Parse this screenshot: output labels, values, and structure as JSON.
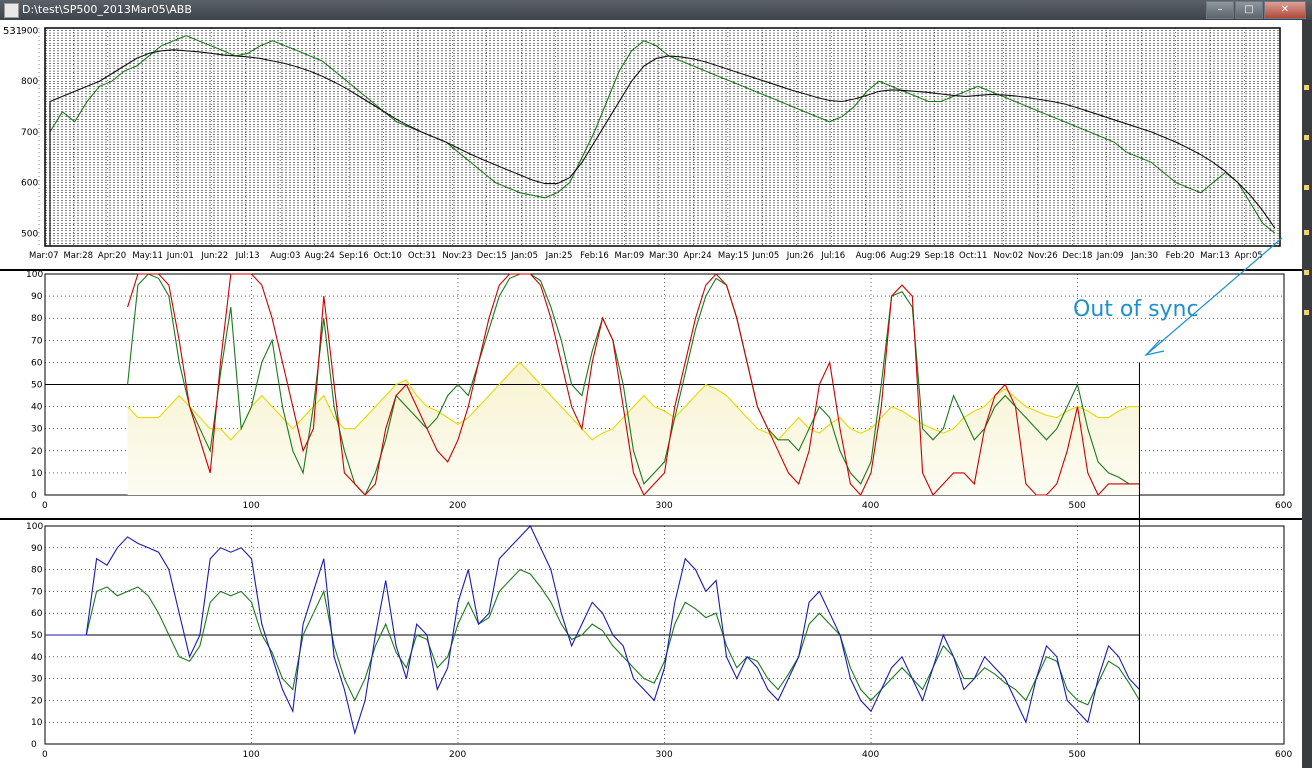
{
  "window": {
    "title": "D:\\test\\SP500_2013Mar05\\ABB",
    "corner_value": "531",
    "buttons": {
      "minimize": "–",
      "maximize": "□",
      "close": "✕"
    }
  },
  "annotation": {
    "text": "Out of sync",
    "color": "#1e8fd0"
  },
  "chart_data": [
    {
      "type": "line",
      "series": [
        {
          "name": "",
          "color": "#1a7a1a",
          "values": [
            700,
            740,
            720,
            760,
            790,
            800,
            820,
            830,
            850,
            870,
            880,
            890,
            880,
            870,
            860,
            850,
            855,
            870,
            880,
            870,
            860,
            850,
            840,
            820,
            800,
            780,
            760,
            740,
            720,
            710,
            700,
            690,
            680,
            660,
            640,
            620,
            600,
            590,
            580,
            575,
            570,
            580,
            600,
            650,
            700,
            760,
            820,
            860,
            880,
            870,
            850,
            840,
            830,
            820,
            810,
            800,
            790,
            780,
            770,
            760,
            750,
            740,
            730,
            720,
            730,
            750,
            780,
            800,
            790,
            780,
            770,
            760,
            760,
            770,
            780,
            790,
            780,
            770,
            760,
            750,
            740,
            730,
            720,
            710,
            700,
            690,
            680,
            660,
            650,
            640,
            620,
            600,
            590,
            580,
            600,
            620,
            600,
            560,
            520,
            500
          ]
        },
        {
          "name": "",
          "color": "#111111",
          "values": [
            760,
            770,
            780,
            790,
            800,
            815,
            830,
            845,
            855,
            860,
            862,
            860,
            858,
            855,
            852,
            850,
            848,
            845,
            840,
            835,
            828,
            820,
            810,
            798,
            785,
            770,
            755,
            740,
            725,
            712,
            700,
            690,
            680,
            668,
            656,
            645,
            635,
            625,
            615,
            605,
            598,
            598,
            610,
            640,
            680,
            720,
            760,
            800,
            830,
            845,
            850,
            848,
            844,
            838,
            830,
            822,
            814,
            806,
            798,
            790,
            782,
            775,
            768,
            762,
            760,
            765,
            772,
            780,
            783,
            782,
            780,
            778,
            775,
            772,
            770,
            772,
            774,
            773,
            771,
            768,
            764,
            760,
            755,
            748,
            740,
            732,
            724,
            716,
            708,
            700,
            690,
            680,
            668,
            655,
            640,
            622,
            600,
            575,
            545,
            510
          ]
        }
      ],
      "x_tick_labels": [
        "Mar:07",
        "Mar:28",
        "Apr:20",
        "May:11",
        "Jun:01",
        "Jun:22",
        "Jul:13",
        "Aug:03",
        "Aug:24",
        "Sep:16",
        "Oct:10",
        "Oct:31",
        "Nov:23",
        "Dec:15",
        "Jan:05",
        "Jan:25",
        "Feb:16",
        "Mar:09",
        "Mar:30",
        "Apr:24",
        "May:15",
        "Jun:05",
        "Jun:26",
        "Jul:16",
        "Aug:06",
        "Aug:29",
        "Sep:18",
        "Oct:11",
        "Nov:02",
        "Nov:26",
        "Dec:18",
        "Jan:09",
        "Jan:30",
        "Feb:20",
        "Mar:13",
        "Apr:05"
      ],
      "y_tick_labels": [
        "900",
        "800",
        "700",
        "600",
        "500"
      ],
      "ylim": [
        475,
        905
      ],
      "grid": true
    },
    {
      "type": "line",
      "x": [
        40,
        45,
        50,
        55,
        60,
        65,
        70,
        75,
        80,
        85,
        90,
        95,
        100,
        105,
        110,
        115,
        120,
        125,
        130,
        135,
        140,
        145,
        150,
        155,
        160,
        165,
        170,
        175,
        180,
        185,
        190,
        195,
        200,
        205,
        210,
        215,
        220,
        225,
        230,
        235,
        240,
        245,
        250,
        255,
        260,
        265,
        270,
        275,
        280,
        285,
        290,
        295,
        300,
        305,
        310,
        315,
        320,
        325,
        330,
        335,
        340,
        345,
        350,
        355,
        360,
        365,
        370,
        375,
        380,
        385,
        390,
        395,
        400,
        405,
        410,
        415,
        420,
        425,
        430,
        435,
        440,
        445,
        450,
        455,
        460,
        465,
        470,
        475,
        480,
        485,
        490,
        495,
        500,
        505,
        510,
        515,
        520,
        525,
        530
      ],
      "series": [
        {
          "name": "",
          "color": "#cc0000",
          "values": [
            85,
            100,
            100,
            100,
            95,
            70,
            40,
            25,
            10,
            60,
            100,
            100,
            100,
            95,
            80,
            60,
            40,
            20,
            30,
            90,
            50,
            10,
            5,
            0,
            5,
            30,
            45,
            50,
            40,
            30,
            20,
            15,
            25,
            40,
            60,
            80,
            95,
            100,
            100,
            100,
            95,
            80,
            60,
            40,
            30,
            60,
            80,
            70,
            40,
            10,
            0,
            5,
            10,
            40,
            60,
            80,
            95,
            100,
            95,
            80,
            60,
            40,
            30,
            20,
            10,
            5,
            20,
            50,
            60,
            30,
            5,
            0,
            10,
            40,
            90,
            95,
            90,
            10,
            0,
            5,
            10,
            10,
            5,
            30,
            45,
            50,
            40,
            5,
            0,
            0,
            5,
            20,
            40,
            10,
            0,
            5,
            5,
            5,
            5
          ]
        },
        {
          "name": "",
          "color": "#1a7a1a",
          "values": [
            50,
            95,
            100,
            98,
            90,
            60,
            40,
            30,
            20,
            55,
            85,
            30,
            40,
            60,
            70,
            40,
            20,
            10,
            40,
            80,
            40,
            20,
            5,
            0,
            10,
            25,
            45,
            40,
            35,
            30,
            35,
            45,
            50,
            45,
            60,
            75,
            90,
            98,
            100,
            100,
            97,
            85,
            70,
            50,
            45,
            65,
            80,
            70,
            50,
            20,
            5,
            10,
            15,
            35,
            55,
            75,
            90,
            98,
            95,
            80,
            60,
            40,
            30,
            25,
            25,
            20,
            30,
            40,
            35,
            20,
            10,
            5,
            15,
            50,
            90,
            92,
            85,
            30,
            25,
            30,
            45,
            35,
            25,
            30,
            40,
            45,
            40,
            35,
            30,
            25,
            30,
            40,
            50,
            30,
            15,
            10,
            8,
            5,
            5
          ]
        },
        {
          "name": "",
          "color": "#e8d800",
          "values": [
            40,
            35,
            35,
            35,
            40,
            45,
            40,
            35,
            30,
            30,
            25,
            30,
            40,
            45,
            40,
            35,
            30,
            35,
            40,
            45,
            35,
            30,
            30,
            35,
            40,
            45,
            50,
            52,
            45,
            40,
            38,
            35,
            32,
            35,
            40,
            45,
            50,
            55,
            60,
            55,
            50,
            45,
            40,
            35,
            30,
            25,
            28,
            30,
            35,
            40,
            45,
            40,
            38,
            35,
            40,
            45,
            50,
            48,
            45,
            40,
            35,
            30,
            28,
            25,
            30,
            35,
            30,
            28,
            32,
            35,
            30,
            28,
            30,
            35,
            40,
            38,
            35,
            32,
            30,
            28,
            30,
            35,
            38,
            40,
            45,
            48,
            44,
            40,
            38,
            36,
            35,
            38,
            40,
            38,
            35,
            35,
            38,
            40,
            40
          ]
        }
      ],
      "reference_line": 50,
      "x_tick_labels": [
        "0",
        "100",
        "200",
        "300",
        "400",
        "500",
        "600"
      ],
      "y_tick_labels": [
        "100",
        "90",
        "80",
        "70",
        "60",
        "50",
        "40",
        "30",
        "20",
        "10",
        "0"
      ],
      "xlim": [
        0,
        600
      ],
      "ylim": [
        0,
        100
      ],
      "grid": true
    },
    {
      "type": "line",
      "x": [
        0,
        10,
        20,
        25,
        30,
        35,
        40,
        45,
        50,
        55,
        60,
        65,
        70,
        75,
        80,
        85,
        90,
        95,
        100,
        105,
        110,
        115,
        120,
        125,
        130,
        135,
        140,
        145,
        150,
        155,
        160,
        165,
        170,
        175,
        180,
        185,
        190,
        195,
        200,
        205,
        210,
        215,
        220,
        225,
        230,
        235,
        240,
        245,
        250,
        255,
        260,
        265,
        270,
        275,
        280,
        285,
        290,
        295,
        300,
        305,
        310,
        315,
        320,
        325,
        330,
        335,
        340,
        345,
        350,
        355,
        360,
        365,
        370,
        375,
        380,
        385,
        390,
        395,
        400,
        405,
        410,
        415,
        420,
        425,
        430,
        435,
        440,
        445,
        450,
        455,
        460,
        465,
        470,
        475,
        480,
        485,
        490,
        495,
        500,
        505,
        510,
        515,
        520,
        525,
        530
      ],
      "series": [
        {
          "name": "",
          "color": "#1a1ab8",
          "values": [
            50,
            50,
            50,
            85,
            82,
            90,
            95,
            92,
            90,
            88,
            80,
            60,
            40,
            50,
            85,
            90,
            88,
            90,
            85,
            55,
            40,
            25,
            15,
            55,
            70,
            85,
            40,
            25,
            5,
            20,
            50,
            75,
            45,
            30,
            55,
            50,
            25,
            35,
            65,
            80,
            55,
            60,
            85,
            90,
            95,
            100,
            90,
            80,
            60,
            45,
            55,
            65,
            60,
            50,
            45,
            30,
            25,
            20,
            35,
            65,
            85,
            80,
            70,
            75,
            40,
            30,
            40,
            35,
            25,
            20,
            30,
            40,
            65,
            70,
            60,
            50,
            30,
            20,
            15,
            25,
            35,
            40,
            30,
            20,
            35,
            50,
            40,
            25,
            30,
            40,
            35,
            30,
            20,
            10,
            30,
            45,
            40,
            20,
            15,
            10,
            30,
            45,
            40,
            30,
            25
          ]
        },
        {
          "name": "",
          "color": "#1a7a1a",
          "values": [
            50,
            50,
            50,
            70,
            72,
            68,
            70,
            72,
            68,
            60,
            50,
            40,
            38,
            45,
            65,
            70,
            68,
            70,
            65,
            50,
            42,
            30,
            25,
            50,
            60,
            70,
            45,
            30,
            20,
            30,
            45,
            55,
            42,
            35,
            50,
            48,
            35,
            40,
            55,
            65,
            55,
            58,
            70,
            75,
            80,
            78,
            72,
            65,
            55,
            48,
            50,
            55,
            52,
            45,
            40,
            35,
            30,
            28,
            38,
            55,
            65,
            62,
            58,
            60,
            45,
            35,
            40,
            38,
            30,
            25,
            32,
            40,
            55,
            60,
            55,
            50,
            35,
            25,
            20,
            25,
            30,
            35,
            30,
            25,
            35,
            45,
            40,
            30,
            30,
            35,
            32,
            28,
            25,
            20,
            30,
            40,
            38,
            25,
            20,
            18,
            28,
            38,
            35,
            28,
            20
          ]
        }
      ],
      "reference_line": 50,
      "x_tick_labels": [
        "0",
        "100",
        "200",
        "300",
        "400",
        "500",
        "600"
      ],
      "y_tick_labels": [
        "100",
        "90",
        "80",
        "70",
        "60",
        "50",
        "40",
        "30",
        "20",
        "10",
        "0"
      ],
      "xlim": [
        0,
        600
      ],
      "ylim": [
        0,
        100
      ],
      "grid": true
    }
  ]
}
